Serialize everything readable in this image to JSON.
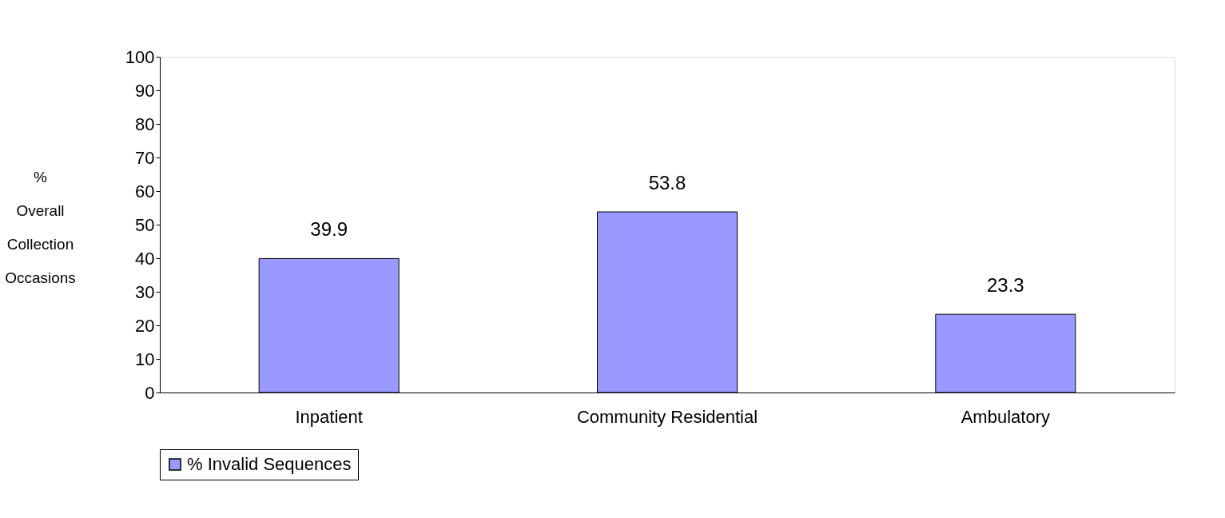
{
  "chart_data": {
    "type": "bar",
    "ylabel": "% Overall Collection Occasions",
    "categories": [
      "Inpatient",
      "Community Residential",
      "Ambulatory"
    ],
    "series": [
      {
        "name": "% Invalid Sequences",
        "color": "#9999ff",
        "values": [
          39.9,
          53.8,
          23.3
        ]
      }
    ],
    "ylim": [
      0,
      100
    ],
    "yticks": [
      0,
      10,
      20,
      30,
      40,
      50,
      60,
      70,
      80,
      90,
      100
    ],
    "data_labels": true,
    "grid": false,
    "legend": "bottom"
  }
}
